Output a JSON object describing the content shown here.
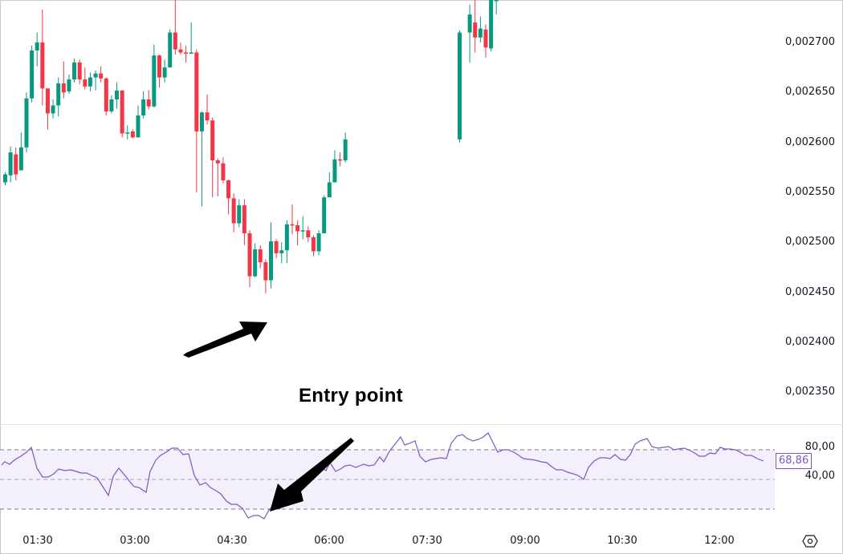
{
  "chart_data": [
    {
      "type": "candlestick",
      "title": "",
      "xlabel": "",
      "ylabel": "",
      "ylim": [
        0.00233,
        0.002745
      ],
      "price_axis_ticks": [
        "0,002700",
        "0,002650",
        "0,002600",
        "0,002550",
        "0,002500",
        "0,002450",
        "0,002400",
        "0,002350"
      ],
      "price_axis_values": [
        0.0027,
        0.00265,
        0.0026,
        0.00255,
        0.0025,
        0.00245,
        0.0024,
        0.00235
      ],
      "time_axis_ticks": [
        "01:30",
        "03:00",
        "04:30",
        "06:00",
        "07:30",
        "09:00",
        "10:30",
        "12:00"
      ],
      "colors": {
        "up": "#089981",
        "down": "#f23645"
      },
      "candles_ohlc": [
        [
          0.00256,
          0.002568,
          0.00257,
          0.002557
        ],
        [
          0.002567,
          0.00259,
          0.002596,
          0.00256
        ],
        [
          0.002588,
          0.002568,
          0.002595,
          0.002562
        ],
        [
          0.002572,
          0.002595,
          0.00261,
          0.002572
        ],
        [
          0.002595,
          0.002644,
          0.00265,
          0.00259
        ],
        [
          0.002644,
          0.002692,
          0.002697,
          0.00264
        ],
        [
          0.002692,
          0.0027,
          0.00271,
          0.002676
        ],
        [
          0.0027,
          0.002654,
          0.002733,
          0.002637
        ],
        [
          0.002654,
          0.002629,
          0.002654,
          0.002613
        ],
        [
          0.002629,
          0.002637,
          0.002643,
          0.002624
        ],
        [
          0.002637,
          0.002659,
          0.002665,
          0.002626
        ],
        [
          0.002659,
          0.00265,
          0.002681,
          0.002644
        ],
        [
          0.002651,
          0.002663,
          0.002668,
          0.002649
        ],
        [
          0.002663,
          0.00268,
          0.002684,
          0.00266
        ],
        [
          0.00268,
          0.002663,
          0.002683,
          0.002658
        ],
        [
          0.002663,
          0.002656,
          0.002675,
          0.002653
        ],
        [
          0.002656,
          0.002665,
          0.00267,
          0.002651
        ],
        [
          0.002665,
          0.002669,
          0.002672,
          0.002652
        ],
        [
          0.002669,
          0.002664,
          0.002676,
          0.00266
        ],
        [
          0.002664,
          0.002631,
          0.002665,
          0.002627
        ],
        [
          0.002631,
          0.002643,
          0.002647,
          0.002629
        ],
        [
          0.002643,
          0.002652,
          0.00266,
          0.002634
        ],
        [
          0.002652,
          0.002609,
          0.002652,
          0.002605
        ],
        [
          0.002609,
          0.00261,
          0.002617,
          0.002603
        ],
        [
          0.002611,
          0.002605,
          0.002613,
          0.002604
        ],
        [
          0.002605,
          0.002627,
          0.002637,
          0.002605
        ],
        [
          0.002627,
          0.002643,
          0.002651,
          0.002624
        ],
        [
          0.002643,
          0.002636,
          0.002652,
          0.002633
        ],
        [
          0.002636,
          0.002687,
          0.002698,
          0.002635
        ],
        [
          0.002687,
          0.002665,
          0.002688,
          0.002655
        ],
        [
          0.002665,
          0.002675,
          0.002683,
          0.00266
        ],
        [
          0.002675,
          0.00271,
          0.002713,
          0.002675
        ],
        [
          0.00271,
          0.002693,
          0.002745,
          0.002688
        ],
        [
          0.002693,
          0.00269,
          0.0027,
          0.002688
        ],
        [
          0.00269,
          0.002689,
          0.002697,
          0.00268
        ],
        [
          0.002689,
          0.00269,
          0.00272,
          0.002689
        ],
        [
          0.00269,
          0.002611,
          0.002693,
          0.00255
        ],
        [
          0.002611,
          0.00263,
          0.002631,
          0.002536
        ],
        [
          0.00263,
          0.002622,
          0.002648,
          0.002618
        ],
        [
          0.002622,
          0.002582,
          0.002625,
          0.002545
        ],
        [
          0.002582,
          0.002579,
          0.002584,
          0.002546
        ],
        [
          0.002579,
          0.002562,
          0.002585,
          0.002559
        ],
        [
          0.002562,
          0.002544,
          0.002563,
          0.002528
        ],
        [
          0.002544,
          0.002519,
          0.002549,
          0.00251
        ],
        [
          0.002519,
          0.002537,
          0.002543,
          0.002515
        ],
        [
          0.002537,
          0.002509,
          0.002543,
          0.002497
        ],
        [
          0.002509,
          0.002466,
          0.002512,
          0.002455
        ],
        [
          0.002466,
          0.002493,
          0.002499,
          0.002465
        ],
        [
          0.002493,
          0.00248,
          0.002497,
          0.002474
        ],
        [
          0.00248,
          0.002462,
          0.002483,
          0.002449
        ],
        [
          0.002462,
          0.002501,
          0.00252,
          0.002454
        ],
        [
          0.002501,
          0.002489,
          0.002503,
          0.002484
        ],
        [
          0.002489,
          0.002492,
          0.0025,
          0.002479
        ],
        [
          0.002492,
          0.002518,
          0.002522,
          0.002479
        ],
        [
          0.002518,
          0.002517,
          0.002538,
          0.002508
        ],
        [
          0.002517,
          0.002511,
          0.002522,
          0.002497
        ],
        [
          0.002511,
          0.002512,
          0.002526,
          0.002503
        ],
        [
          0.002512,
          0.002505,
          0.002516,
          0.0025
        ],
        [
          0.002505,
          0.002491,
          0.002507,
          0.002486
        ],
        [
          0.002491,
          0.002509,
          0.002512,
          0.002487
        ],
        [
          0.002509,
          0.002545,
          0.002547,
          0.002509
        ],
        [
          0.002545,
          0.00256,
          0.00257,
          0.002545
        ],
        [
          0.00256,
          0.002583,
          0.002592,
          0.00256
        ],
        [
          0.002583,
          0.002582,
          0.00259,
          0.002576
        ],
        [
          0.002582,
          0.002603,
          0.00261,
          0.00258
        ]
      ],
      "note": "OHLC values estimated from pixel positions; visible candle series continues up-right beyond frame top near 09:00"
    },
    {
      "type": "line",
      "title": "RSI",
      "ylim": [
        10,
        100
      ],
      "y_ticks": [
        "80,00",
        "40,00"
      ],
      "bands": {
        "upper": 70,
        "middle": 50,
        "lower": 30
      },
      "last_value": "68,86",
      "line_color": "#7e57c2",
      "band_fill": "#f3effb"
    }
  ],
  "annotations": {
    "entry_label": "Entry point"
  },
  "axis": {
    "price_labels": [
      "0,002700",
      "0,002650",
      "0,002600",
      "0,002550",
      "0,002500",
      "0,002450",
      "0,002400",
      "0,002350"
    ],
    "time_labels": [
      "01:30",
      "03:00",
      "04:30",
      "06:00",
      "07:30",
      "09:00",
      "10:30",
      "12:00"
    ],
    "rsi_labels": [
      "80,00",
      "40,00"
    ],
    "rsi_value": "68,86"
  },
  "icons": {
    "settings": "hexagon-gear-icon"
  }
}
